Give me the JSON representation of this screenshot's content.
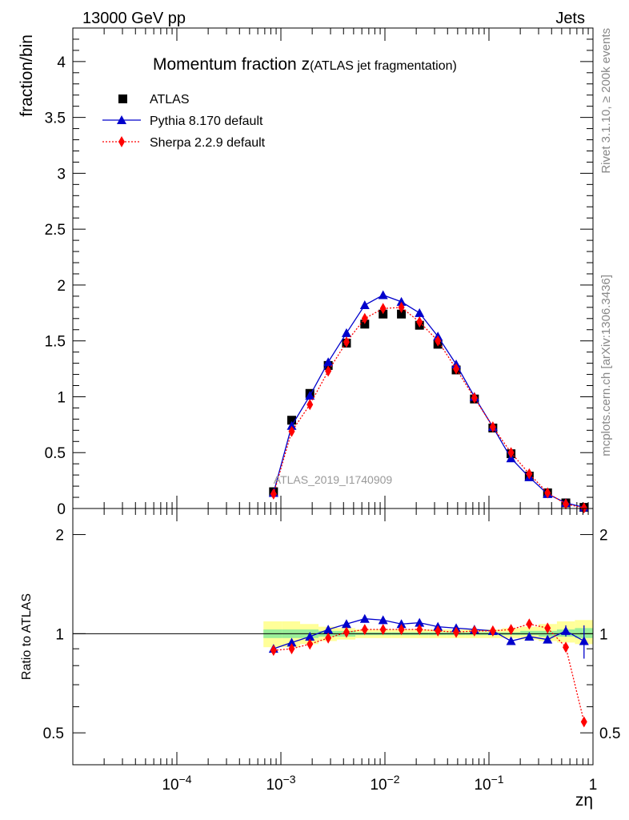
{
  "header": {
    "energy_label": "13000 GeV pp",
    "category_label": "Jets"
  },
  "side_text": {
    "rivet": "Rivet 3.1.10, ≥ 200k events",
    "mcplots": "mcplots.cern.ch [arXiv:1306.3436]"
  },
  "watermark": "ATLAS_2019_I1740909",
  "chart_data": [
    {
      "type": "line",
      "title_main": "Momentum fraction z",
      "title_sub": "(ATLAS jet fragmentation)",
      "ylabel": "fraction/bin",
      "xscale": "log",
      "xlim": [
        1e-05,
        1
      ],
      "ylim": [
        0,
        4.3
      ],
      "yticks": [
        0,
        0.5,
        1,
        1.5,
        2,
        2.5,
        3,
        3.5,
        4
      ],
      "ytick_labels": [
        "0",
        "0.5",
        "1",
        "1.5",
        "2",
        "2.5",
        "3",
        "3.5",
        "4"
      ],
      "legend_position": "top-left",
      "x": [
        0.00085,
        0.00127,
        0.0019,
        0.00285,
        0.00427,
        0.0064,
        0.0096,
        0.0144,
        0.0215,
        0.0323,
        0.0484,
        0.0725,
        0.109,
        0.163,
        0.244,
        0.366,
        0.548,
        0.82
      ],
      "series": [
        {
          "name": "ATLAS",
          "color": "#000000",
          "marker": "square",
          "line": "none",
          "values": [
            0.15,
            0.79,
            1.03,
            1.28,
            1.48,
            1.65,
            1.74,
            1.74,
            1.64,
            1.47,
            1.24,
            0.98,
            0.72,
            0.49,
            0.29,
            0.14,
            0.05,
            0.01
          ]
        },
        {
          "name": "Pythia 8.170 default",
          "color": "#0000cc",
          "marker": "triangle",
          "line": "solid",
          "values": [
            0.14,
            0.74,
            1.01,
            1.31,
            1.57,
            1.82,
            1.91,
            1.85,
            1.75,
            1.54,
            1.29,
            1.0,
            0.73,
            0.45,
            0.28,
            0.13,
            0.05,
            0.01
          ]
        },
        {
          "name": "Sherpa 2.2.9 default",
          "color": "#ff0000",
          "marker": "diamond",
          "line": "dotted",
          "values": [
            0.13,
            0.69,
            0.93,
            1.23,
            1.49,
            1.7,
            1.79,
            1.8,
            1.67,
            1.5,
            1.25,
            0.99,
            0.73,
            0.5,
            0.31,
            0.14,
            0.04,
            0.005
          ]
        }
      ]
    },
    {
      "type": "line",
      "ylabel": "Ratio to ATLAS",
      "xlabel": "zη",
      "xscale": "log",
      "yscale": "log",
      "xlim": [
        1e-05,
        1
      ],
      "ylim": [
        0.4,
        2.4
      ],
      "yticks": [
        0.5,
        1,
        2
      ],
      "ytick_labels": [
        "0.5",
        "1",
        "2"
      ],
      "xticks": [
        0.0001,
        0.001,
        0.01,
        0.1,
        1
      ],
      "xtick_labels": [
        {
          "base": "10",
          "exp": "−4"
        },
        {
          "base": "10",
          "exp": "−3"
        },
        {
          "base": "10",
          "exp": "−2"
        },
        {
          "base": "10",
          "exp": "−1"
        },
        {
          "base": "1",
          "exp": ""
        }
      ],
      "x": [
        0.00085,
        0.00127,
        0.0019,
        0.00285,
        0.00427,
        0.0064,
        0.0096,
        0.0144,
        0.0215,
        0.0323,
        0.0484,
        0.0725,
        0.109,
        0.163,
        0.244,
        0.366,
        0.548,
        0.82
      ],
      "bin_edges": [
        0.00068,
        0.00102,
        0.00153,
        0.0023,
        0.00345,
        0.0052,
        0.0078,
        0.0117,
        0.0176,
        0.0264,
        0.0396,
        0.0594,
        0.0891,
        0.134,
        0.2,
        0.3,
        0.45,
        0.67,
        1.0
      ],
      "band_yellow": {
        "lo": [
          0.91,
          0.91,
          0.93,
          0.95,
          0.96,
          0.97,
          0.97,
          0.97,
          0.97,
          0.97,
          0.97,
          0.97,
          0.97,
          0.97,
          0.96,
          0.95,
          0.94,
          0.93
        ],
        "hi": [
          1.09,
          1.09,
          1.07,
          1.05,
          1.04,
          1.03,
          1.03,
          1.03,
          1.03,
          1.03,
          1.03,
          1.03,
          1.03,
          1.04,
          1.05,
          1.07,
          1.09,
          1.1
        ]
      },
      "band_green": {
        "lo": [
          0.97,
          0.97,
          0.97,
          0.98,
          0.98,
          0.99,
          0.99,
          0.99,
          0.99,
          0.99,
          0.99,
          0.99,
          0.99,
          0.99,
          0.99,
          0.98,
          0.98,
          0.97
        ],
        "hi": [
          1.03,
          1.03,
          1.03,
          1.02,
          1.02,
          1.01,
          1.01,
          1.01,
          1.01,
          1.01,
          1.01,
          1.01,
          1.01,
          1.01,
          1.02,
          1.02,
          1.03,
          1.04
        ]
      },
      "series": [
        {
          "name": "Pythia 8.170 default",
          "color": "#0000cc",
          "marker": "triangle",
          "line": "solid",
          "values": [
            0.9,
            0.94,
            0.98,
            1.03,
            1.07,
            1.11,
            1.1,
            1.07,
            1.08,
            1.05,
            1.04,
            1.03,
            1.02,
            0.95,
            0.98,
            0.96,
            1.02,
            0.95
          ],
          "err_lo": [
            0,
            0,
            0,
            0,
            0,
            0,
            0,
            0,
            0,
            0,
            0,
            0,
            0,
            0,
            0,
            0,
            0.04,
            0.11
          ],
          "err_hi": [
            0,
            0,
            0,
            0,
            0,
            0,
            0,
            0,
            0,
            0,
            0,
            0,
            0,
            0,
            0,
            0,
            0.04,
            0.11
          ]
        },
        {
          "name": "Sherpa 2.2.9 default",
          "color": "#ff0000",
          "marker": "diamond",
          "line": "dotted",
          "values": [
            0.89,
            0.9,
            0.93,
            0.97,
            1.01,
            1.03,
            1.03,
            1.03,
            1.03,
            1.02,
            1.01,
            1.02,
            1.02,
            1.03,
            1.07,
            1.04,
            0.91,
            0.54
          ]
        }
      ]
    }
  ]
}
